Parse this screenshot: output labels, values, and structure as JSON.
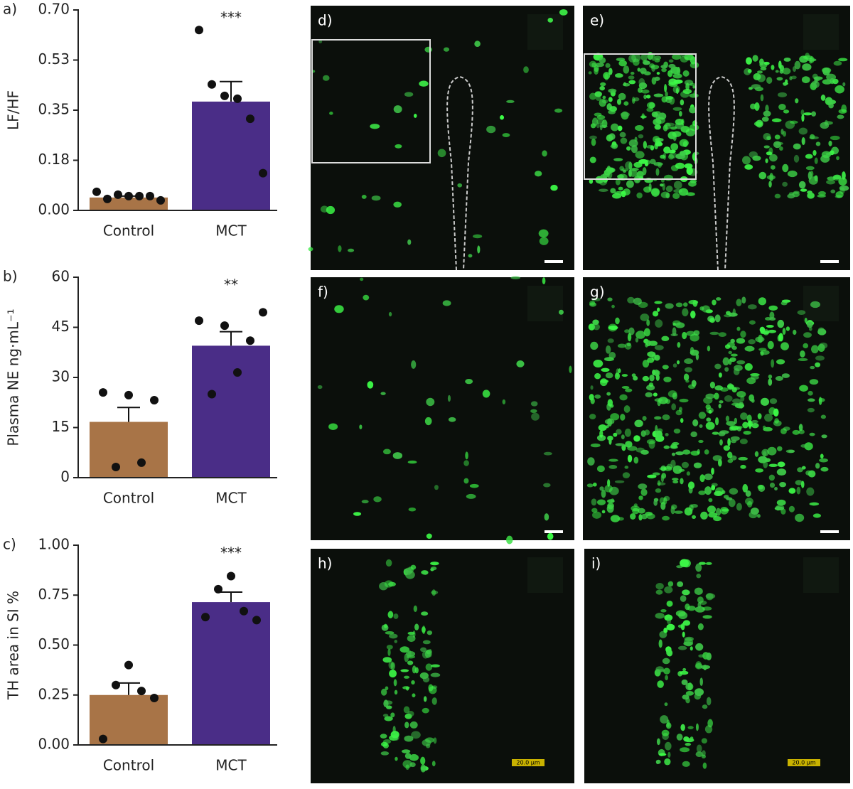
{
  "chart_data": [
    {
      "type": "bar",
      "panel": "a)",
      "ylabel": "LF/HF",
      "categories": [
        "Control",
        "MCT"
      ],
      "values": [
        0.045,
        0.38
      ],
      "errors": [
        0.005,
        0.07
      ],
      "colors": [
        "#a87447",
        "#4a2d87"
      ],
      "points": [
        [
          0.065,
          0.04,
          0.055,
          0.05,
          0.05,
          0.05,
          0.035
        ],
        [
          0.63,
          0.44,
          0.4,
          0.39,
          0.32,
          0.13
        ]
      ],
      "annotation": "***",
      "ylim": [
        0,
        0.7
      ],
      "yticks": [
        {
          "value": 0,
          "label": "0.00"
        },
        {
          "value": 0.175,
          "label": "0.18"
        },
        {
          "value": 0.35,
          "label": "0.35"
        },
        {
          "value": 0.525,
          "label": "0.53"
        },
        {
          "value": 0.7,
          "label": "0.70"
        }
      ]
    },
    {
      "type": "bar",
      "panel": "b)",
      "ylabel": "Plasma NE ng·mL⁻¹",
      "categories": [
        "Control",
        "MCT"
      ],
      "values": [
        16.7,
        39.5
      ],
      "errors": [
        4.3,
        4.2
      ],
      "colors": [
        "#a87447",
        "#4a2d87"
      ],
      "points": [
        [
          25.5,
          3.2,
          24.7,
          4.5,
          23.2
        ],
        [
          47,
          25,
          45.5,
          31.5,
          41,
          49.5
        ]
      ],
      "annotation": "**",
      "ylim": [
        0,
        60
      ],
      "yticks": [
        0,
        15,
        30,
        45,
        60
      ]
    },
    {
      "type": "bar",
      "panel": "c)",
      "ylabel": "TH area in SI %",
      "categories": [
        "Control",
        "MCT"
      ],
      "values": [
        0.25,
        0.715
      ],
      "errors": [
        0.06,
        0.05
      ],
      "colors": [
        "#a87447",
        "#4a2d87"
      ],
      "points": [
        [
          0.03,
          0.3,
          0.4,
          0.27,
          0.235
        ],
        [
          0.64,
          0.78,
          0.845,
          0.67,
          0.625
        ]
      ],
      "annotation": "***",
      "ylim": [
        0,
        1
      ],
      "yticks": [
        {
          "value": 0,
          "label": "0.00"
        },
        {
          "value": 0.25,
          "label": "0.25"
        },
        {
          "value": 0.5,
          "label": "0.50"
        },
        {
          "value": 0.75,
          "label": "0.75"
        },
        {
          "value": 1,
          "label": "1.00"
        }
      ]
    }
  ],
  "images": [
    {
      "label": "d)"
    },
    {
      "label": "e)"
    },
    {
      "label": "f)"
    },
    {
      "label": "g)"
    },
    {
      "label": "h)",
      "scale_label": "20.0 µm"
    },
    {
      "label": "i)",
      "scale_label": "20.0 µm"
    }
  ]
}
